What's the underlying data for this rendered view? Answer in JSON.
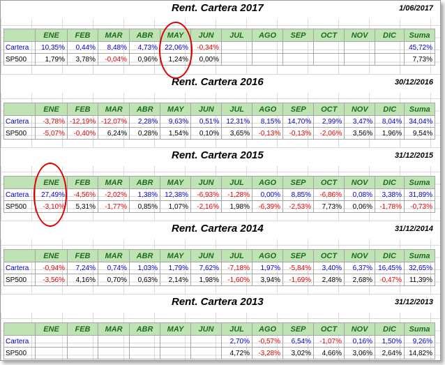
{
  "headers": [
    "ENE",
    "FEB",
    "MAR",
    "ABR",
    "MAY",
    "JUN",
    "JUL",
    "AGO",
    "SEP",
    "OCT",
    "NOV",
    "DIC",
    "Suma"
  ],
  "row_labels": {
    "cartera": "Cartera",
    "sp500": "SP500"
  },
  "blocks": [
    {
      "title": "Rent. Cartera 2017",
      "date": "1/06/2017",
      "cartera": [
        "10,35%",
        "0,44%",
        "8,48%",
        "4,73%",
        "22,06%",
        "-0,34%",
        "",
        "",
        "",
        "",
        "",
        "",
        "45,72%"
      ],
      "sp500": [
        "1,79%",
        "3,78%",
        "-0,04%",
        "0,96%",
        "1,24%",
        "0,00%",
        "",
        "",
        "",
        "",
        "",
        "",
        "7,73%"
      ]
    },
    {
      "title": "Rent. Cartera 2016",
      "date": "30/12/2016",
      "cartera": [
        "-3,78%",
        "-12,19%",
        "-12,07%",
        "2,28%",
        "9,63%",
        "0,51%",
        "12,31%",
        "8,15%",
        "14,70%",
        "2,99%",
        "3,47%",
        "8,04%",
        "34,04%"
      ],
      "sp500": [
        "-5,07%",
        "-0,40%",
        "6,24%",
        "0,28%",
        "1,54%",
        "0,10%",
        "3,65%",
        "-0,13%",
        "-0,13%",
        "-2,06%",
        "3,56%",
        "1,96%",
        "9,54%"
      ]
    },
    {
      "title": "Rent. Cartera 2015",
      "date": "31/12/2015",
      "cartera": [
        "27,49%",
        "-4,56%",
        "-2,02%",
        "1,38%",
        "12,38%",
        "-6,93%",
        "-1,28%",
        "0,00%",
        "8,85%",
        "-6,86%",
        "0,08%",
        "3,38%",
        "31,89%"
      ],
      "sp500": [
        "-3,10%",
        "5,31%",
        "-1,77%",
        "0,85%",
        "1,07%",
        "-2,16%",
        "1,98%",
        "-6,39%",
        "-2,53%",
        "7,73%",
        "0,06%",
        "-1,78%",
        "-0,73%"
      ]
    },
    {
      "title": "Rent. Cartera 2014",
      "date": "31/12/2014",
      "cartera": [
        "-0,94%",
        "7,24%",
        "0,74%",
        "1,03%",
        "1,79%",
        "7,62%",
        "-7,18%",
        "1,97%",
        "-5,84%",
        "3,40%",
        "6,37%",
        "16,45%",
        "32,65%"
      ],
      "sp500": [
        "-3,56%",
        "4,16%",
        "0,70%",
        "0,63%",
        "2,14%",
        "1,98%",
        "-1,60%",
        "3,94%",
        "-1,69%",
        "2,48%",
        "2,68%",
        "-0,47%",
        "11,39%"
      ]
    },
    {
      "title": "Rent. Cartera 2013",
      "date": "31/12/2013",
      "cartera": [
        "",
        "",
        "",
        "",
        "",
        "",
        "2,70%",
        "-0,57%",
        "6,54%",
        "-1,07%",
        "0,16%",
        "1,50%",
        "9,26%"
      ],
      "sp500": [
        "",
        "",
        "",
        "",
        "",
        "",
        "4,72%",
        "-3,28%",
        "3,02%",
        "4,66%",
        "3,06%",
        "2,64%",
        "14,82%"
      ]
    }
  ],
  "colors": {
    "header_bg": "#bfe3b4",
    "header_text": "#1f6b1f",
    "positive_cartera": "#0000cc",
    "negative": "#e00000",
    "highlight": "#e00000"
  }
}
